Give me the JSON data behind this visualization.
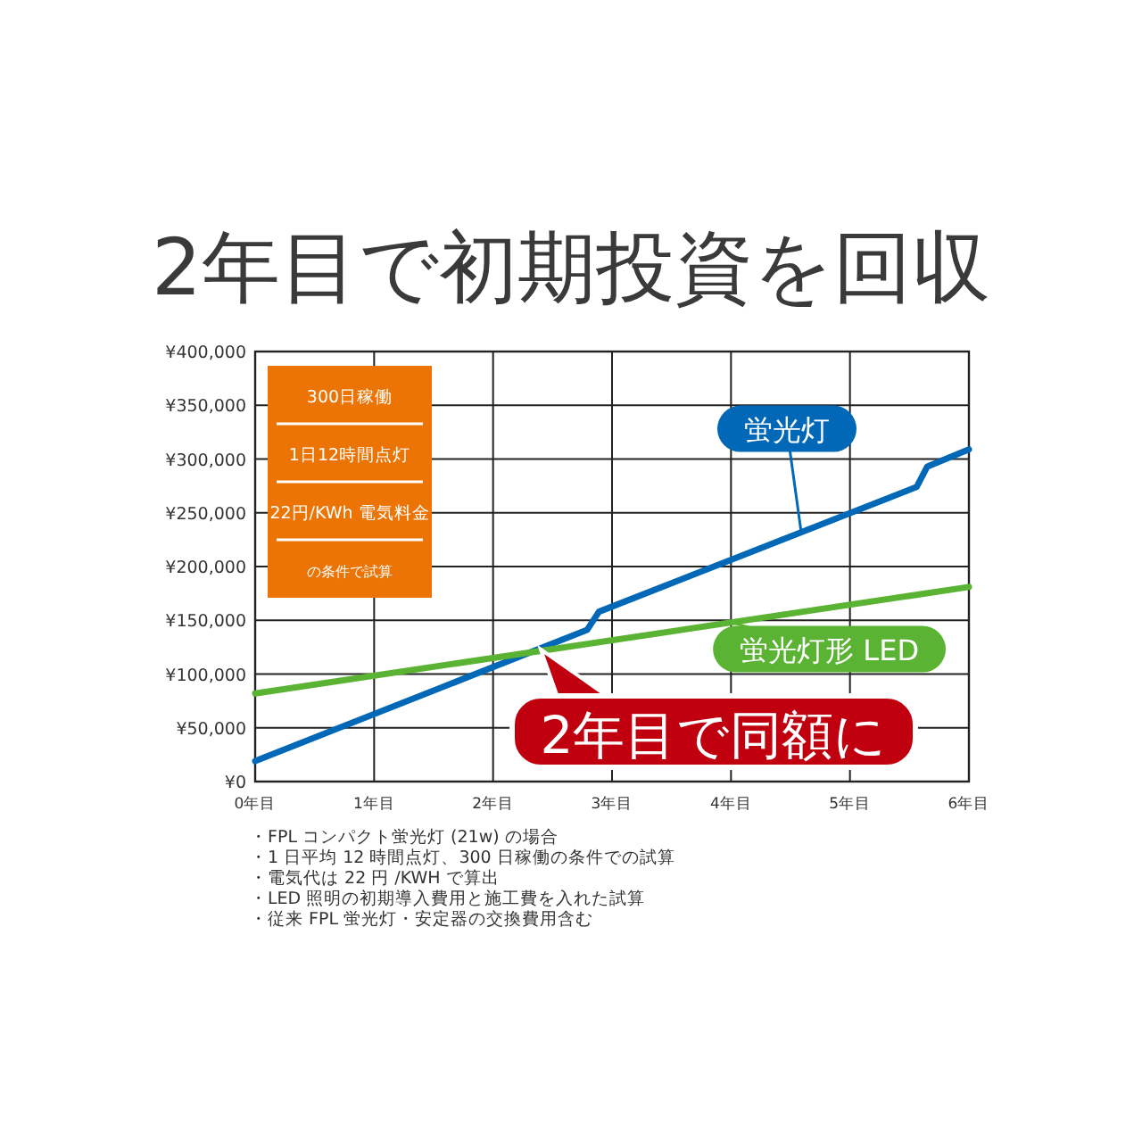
{
  "chart_data": {
    "type": "line",
    "title": "2年目で初期投資を回収",
    "xlim": [
      0,
      6
    ],
    "xticks": [
      {
        "value": 0,
        "label": "0年目"
      },
      {
        "value": 1,
        "label": "1年目"
      },
      {
        "value": 2,
        "label": "2年目"
      },
      {
        "value": 3,
        "label": "3年目"
      },
      {
        "value": 4,
        "label": "4年目"
      },
      {
        "value": 5,
        "label": "5年目"
      },
      {
        "value": 6,
        "label": "6年目"
      }
    ],
    "ylim": [
      0,
      400000
    ],
    "yticks": [
      {
        "value": 0,
        "label": "¥0"
      },
      {
        "value": 50000,
        "label": "¥50,000"
      },
      {
        "value": 100000,
        "label": "¥100,000"
      },
      {
        "value": 150000,
        "label": "¥150,000"
      },
      {
        "value": 200000,
        "label": "¥200,000"
      },
      {
        "value": 250000,
        "label": "¥250,000"
      },
      {
        "value": 300000,
        "label": "¥300,000"
      },
      {
        "value": 350000,
        "label": "¥350,000"
      },
      {
        "value": 400000,
        "label": "¥400,000"
      }
    ],
    "grid": true,
    "legend": false,
    "marker": "none",
    "line_style": "solid",
    "series": [
      {
        "name": "蛍光灯",
        "color": "#0068b7",
        "x": [
          0,
          2.79,
          2.89,
          5.56,
          5.65,
          6
        ],
        "values": [
          19000,
          141000,
          158000,
          274000,
          293000,
          309000
        ]
      },
      {
        "name": "蛍光灯形 LED",
        "color": "#5bb334",
        "x": [
          0,
          6
        ],
        "values": [
          82000,
          181000
        ]
      }
    ],
    "annotations": [
      {
        "text": "2年目で同額に",
        "x": 2.4,
        "y": 123000
      },
      "300日稼働",
      "1日12時間点灯",
      "22円/KWh 電気料金",
      "の条件で試算",
      "・FPL コンパクト蛍光灯 (21w) の場合",
      "・1 日平均 12 時間点灯、300 日稼働の条件での試算",
      "・電気代は 22 円 /KWH で算出",
      "・LED 照明の初期導入費用と施工費を入れた試算",
      "・従来 FPL 蛍光灯・安定器の交換費用含む"
    ]
  }
}
